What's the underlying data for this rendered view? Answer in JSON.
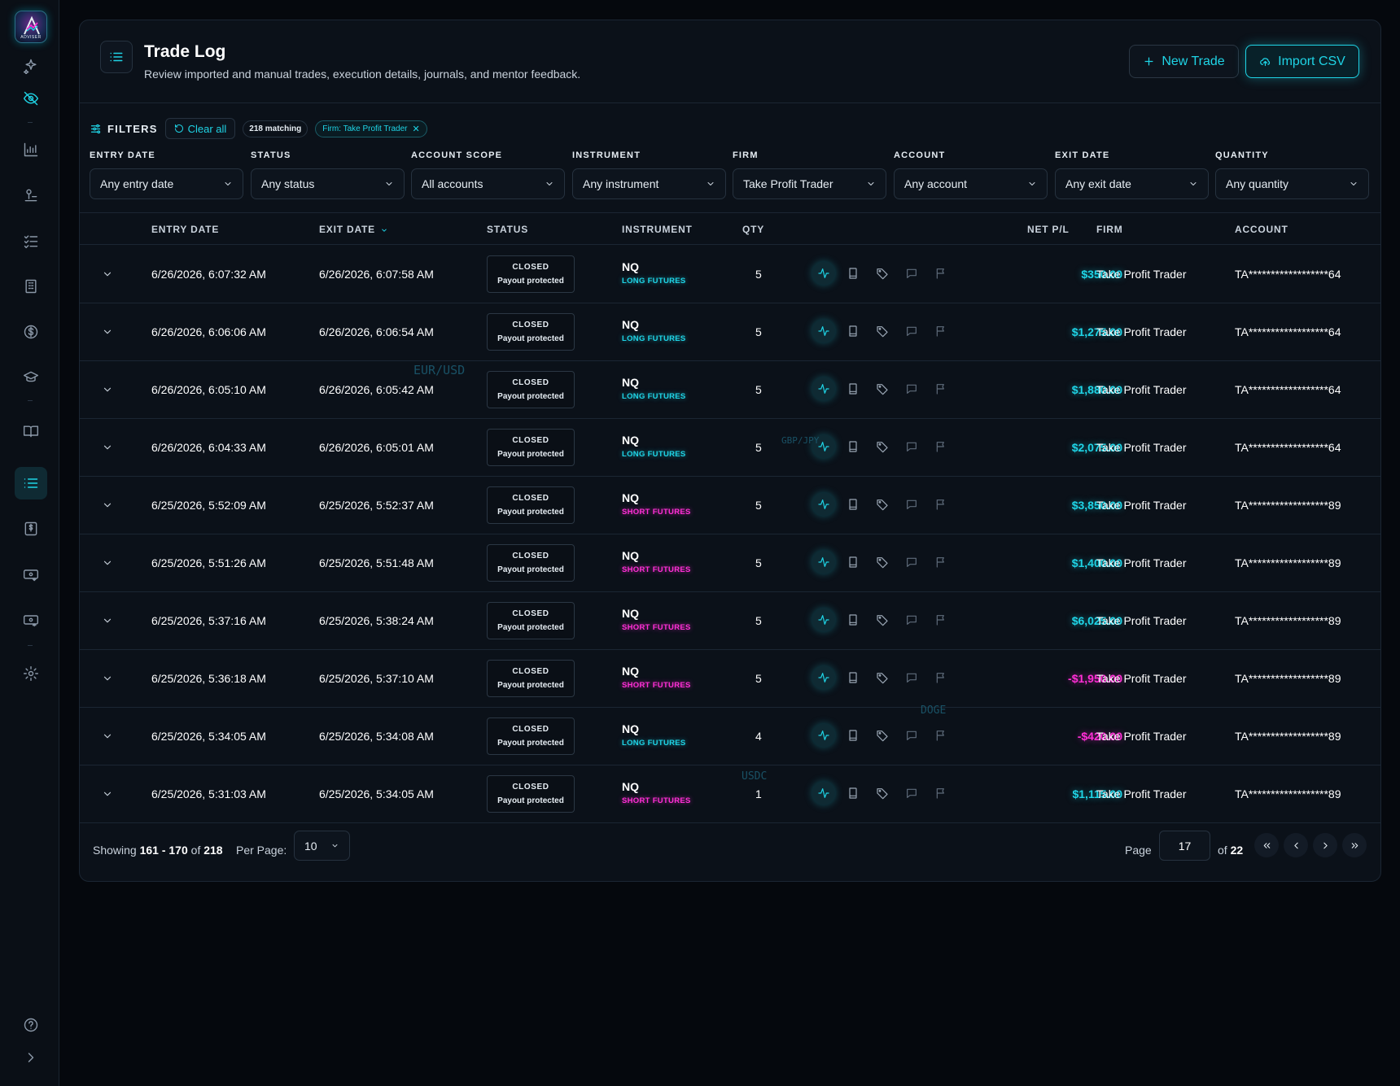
{
  "app": {
    "logo_text": "ADVISER"
  },
  "header": {
    "title": "Trade Log",
    "subtitle": "Review imported and manual trades, execution details, journals, and mentor feedback.",
    "new_trade_label": "New Trade",
    "import_label": "Import CSV"
  },
  "filters": {
    "heading": "FILTERS",
    "clear_all": "Clear all",
    "matching": "218 matching",
    "active_chip": "Firm: Take Profit Trader",
    "groups": [
      {
        "label": "ENTRY DATE",
        "value": "Any entry date"
      },
      {
        "label": "STATUS",
        "value": "Any status"
      },
      {
        "label": "ACCOUNT SCOPE",
        "value": "All accounts"
      },
      {
        "label": "INSTRUMENT",
        "value": "Any instrument"
      },
      {
        "label": "FIRM",
        "value": "Take Profit Trader"
      },
      {
        "label": "ACCOUNT",
        "value": "Any account"
      },
      {
        "label": "EXIT DATE",
        "value": "Any exit date"
      },
      {
        "label": "QUANTITY",
        "value": "Any quantity"
      }
    ]
  },
  "table": {
    "columns": {
      "entry_date": "ENTRY DATE",
      "exit_date": "EXIT DATE",
      "status": "STATUS",
      "instrument": "INSTRUMENT",
      "qty": "QTY",
      "net_pl": "NET P/L",
      "firm": "FIRM",
      "account": "ACCOUNT"
    },
    "rows": [
      {
        "entry": "6/26/2026, 6:07:32 AM",
        "exit": "6/26/2026, 6:07:58 AM",
        "status": "CLOSED",
        "status_note": "Payout protected",
        "symbol": "NQ",
        "direction": "LONG FUTURES",
        "qty": "5",
        "pnl": "$350.00",
        "firm": "Take Profit Trader",
        "account": "TA******************64"
      },
      {
        "entry": "6/26/2026, 6:06:06 AM",
        "exit": "6/26/2026, 6:06:54 AM",
        "status": "CLOSED",
        "status_note": "Payout protected",
        "symbol": "NQ",
        "direction": "LONG FUTURES",
        "qty": "5",
        "pnl": "$1,275.00",
        "firm": "Take Profit Trader",
        "account": "TA******************64"
      },
      {
        "entry": "6/26/2026, 6:05:10 AM",
        "exit": "6/26/2026, 6:05:42 AM",
        "status": "CLOSED",
        "status_note": "Payout protected",
        "symbol": "NQ",
        "direction": "LONG FUTURES",
        "qty": "5",
        "pnl": "$1,880.00",
        "firm": "Take Profit Trader",
        "account": "TA******************64"
      },
      {
        "entry": "6/26/2026, 6:04:33 AM",
        "exit": "6/26/2026, 6:05:01 AM",
        "status": "CLOSED",
        "status_note": "Payout protected",
        "symbol": "NQ",
        "direction": "LONG FUTURES",
        "qty": "5",
        "pnl": "$2,075.00",
        "firm": "Take Profit Trader",
        "account": "TA******************64"
      },
      {
        "entry": "6/25/2026, 5:52:09 AM",
        "exit": "6/25/2026, 5:52:37 AM",
        "status": "CLOSED",
        "status_note": "Payout protected",
        "symbol": "NQ",
        "direction": "SHORT FUTURES",
        "qty": "5",
        "pnl": "$3,850.00",
        "firm": "Take Profit Trader",
        "account": "TA******************89"
      },
      {
        "entry": "6/25/2026, 5:51:26 AM",
        "exit": "6/25/2026, 5:51:48 AM",
        "status": "CLOSED",
        "status_note": "Payout protected",
        "symbol": "NQ",
        "direction": "SHORT FUTURES",
        "qty": "5",
        "pnl": "$1,400.00",
        "firm": "Take Profit Trader",
        "account": "TA******************89"
      },
      {
        "entry": "6/25/2026, 5:37:16 AM",
        "exit": "6/25/2026, 5:38:24 AM",
        "status": "CLOSED",
        "status_note": "Payout protected",
        "symbol": "NQ",
        "direction": "SHORT FUTURES",
        "qty": "5",
        "pnl": "$6,025.00",
        "firm": "Take Profit Trader",
        "account": "TA******************89"
      },
      {
        "entry": "6/25/2026, 5:36:18 AM",
        "exit": "6/25/2026, 5:37:10 AM",
        "status": "CLOSED",
        "status_note": "Payout protected",
        "symbol": "NQ",
        "direction": "SHORT FUTURES",
        "qty": "5",
        "pnl": "-$1,950.00",
        "firm": "Take Profit Trader",
        "account": "TA******************89"
      },
      {
        "entry": "6/25/2026, 5:34:05 AM",
        "exit": "6/25/2026, 5:34:08 AM",
        "status": "CLOSED",
        "status_note": "Payout protected",
        "symbol": "NQ",
        "direction": "LONG FUTURES",
        "qty": "4",
        "pnl": "-$420.00",
        "firm": "Take Profit Trader",
        "account": "TA******************89"
      },
      {
        "entry": "6/25/2026, 5:31:03 AM",
        "exit": "6/25/2026, 5:34:05 AM",
        "status": "CLOSED",
        "status_note": "Payout protected",
        "symbol": "NQ",
        "direction": "SHORT FUTURES",
        "qty": "1",
        "pnl": "$1,115.00",
        "firm": "Take Profit Trader",
        "account": "TA******************89"
      }
    ]
  },
  "pagination": {
    "showing_prefix": "Showing",
    "range": "161 - 170",
    "of_word": "of",
    "total": "218",
    "per_page_label": "Per Page:",
    "per_page_value": "10",
    "page_label": "Page",
    "current_page": "17",
    "page_of": "of",
    "total_pages": "22"
  },
  "background_tickers": [
    "EUR/USD",
    "GBP/JPY",
    "DOGE",
    "USDC"
  ],
  "colors": {
    "accent_cyan": "#1fd4e6",
    "accent_magenta": "#ff2fd6",
    "background": "#05080d",
    "panel": "#0b1119"
  }
}
